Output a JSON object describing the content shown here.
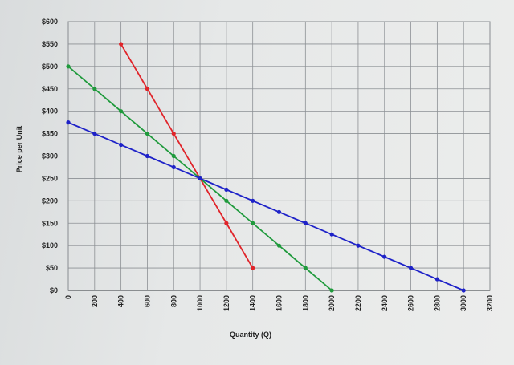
{
  "chart_data": {
    "type": "line",
    "title": "",
    "xlabel": "Quantity (Q)",
    "ylabel": "Price per Unit",
    "xlim": [
      0,
      3200
    ],
    "ylim": [
      0,
      600
    ],
    "x_ticks": [
      "0",
      "200",
      "400",
      "600",
      "800",
      "1000",
      "1200",
      "1400",
      "1600",
      "1800",
      "2000",
      "2200",
      "2400",
      "2600",
      "2800",
      "3000",
      "3200"
    ],
    "y_ticks": [
      "$0",
      "$50",
      "$100",
      "$150",
      "$200",
      "$250",
      "$300",
      "$350",
      "$400",
      "$450",
      "$500",
      "$550",
      "$600"
    ],
    "grid": true,
    "legend": "none",
    "series": [
      {
        "color": "#e0242a",
        "points": [
          [
            400,
            550
          ],
          [
            600,
            450
          ],
          [
            800,
            350
          ],
          [
            1000,
            250
          ],
          [
            1200,
            150
          ],
          [
            1400,
            50
          ]
        ]
      },
      {
        "color": "#1f9a3c",
        "points": [
          [
            0,
            500
          ],
          [
            200,
            450
          ],
          [
            400,
            400
          ],
          [
            600,
            350
          ],
          [
            800,
            300
          ],
          [
            1000,
            250
          ],
          [
            1200,
            200
          ],
          [
            1400,
            150
          ],
          [
            1600,
            100
          ],
          [
            1800,
            50
          ],
          [
            2000,
            0
          ]
        ]
      },
      {
        "color": "#1e22c8",
        "points": [
          [
            0,
            375
          ],
          [
            200,
            350
          ],
          [
            400,
            325
          ],
          [
            600,
            300
          ],
          [
            800,
            275
          ],
          [
            1000,
            250
          ],
          [
            1200,
            225
          ],
          [
            1400,
            200
          ],
          [
            1600,
            175
          ],
          [
            1800,
            150
          ],
          [
            2000,
            125
          ],
          [
            2200,
            100
          ],
          [
            2400,
            75
          ],
          [
            2600,
            50
          ],
          [
            2800,
            25
          ],
          [
            3000,
            0
          ]
        ]
      }
    ]
  }
}
